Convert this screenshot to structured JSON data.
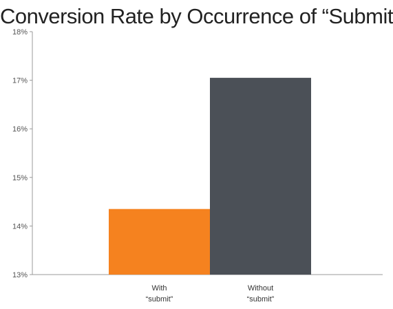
{
  "chart_data": {
    "type": "bar",
    "title": "Conversion Rate by Occurrence of “Submit”",
    "xlabel": "",
    "ylabel": "",
    "categories": [
      [
        "With",
        "“submit”"
      ],
      [
        "Without",
        "“submit”"
      ]
    ],
    "values": [
      14.35,
      17.05
    ],
    "colors": [
      "#f5821f",
      "#4b5057"
    ],
    "ylim": [
      13,
      18
    ],
    "yticks": [
      13,
      14,
      15,
      16,
      17,
      18
    ],
    "ytick_labels": [
      "13%",
      "14%",
      "15%",
      "16%",
      "17%",
      "18%"
    ],
    "grid": false,
    "legend": "none"
  }
}
